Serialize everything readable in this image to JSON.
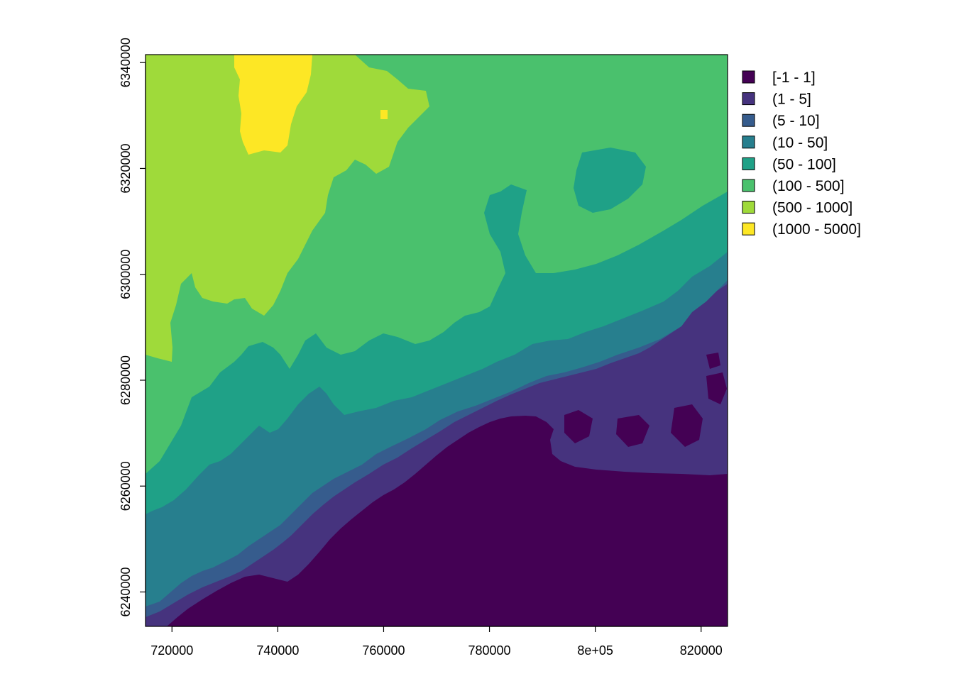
{
  "chart_data": {
    "type": "heatmap",
    "title": "",
    "xlabel": "",
    "ylabel": "",
    "xlim": [
      715000,
      825000
    ],
    "ylim": [
      6233500,
      6341500
    ],
    "x_ticks": [
      {
        "value": 720000,
        "label": "720000"
      },
      {
        "value": 740000,
        "label": "740000"
      },
      {
        "value": 760000,
        "label": "760000"
      },
      {
        "value": 780000,
        "label": "780000"
      },
      {
        "value": 800000,
        "label": "8e+05"
      },
      {
        "value": 820000,
        "label": "820000"
      }
    ],
    "y_ticks": [
      {
        "value": 6240000,
        "label": "6240000"
      },
      {
        "value": 6260000,
        "label": "6260000"
      },
      {
        "value": 6280000,
        "label": "6280000"
      },
      {
        "value": 6300000,
        "label": "6300000"
      },
      {
        "value": 6320000,
        "label": "6320000"
      },
      {
        "value": 6340000,
        "label": "6340000"
      }
    ],
    "legend_position": "right",
    "legend": [
      {
        "label": "[-1 - 1]",
        "color": "#440154"
      },
      {
        "label": "(1 - 5]",
        "color": "#46337E"
      },
      {
        "label": "(5 - 10]",
        "color": "#365C8D"
      },
      {
        "label": "(10 - 50]",
        "color": "#277F8E"
      },
      {
        "label": "(50 - 100]",
        "color": "#1FA187"
      },
      {
        "label": "(100 - 500]",
        "color": "#4AC16D"
      },
      {
        "label": "(500 - 1000]",
        "color": "#9FDA3A"
      },
      {
        "label": "(1000 - 5000]",
        "color": "#FDE725"
      }
    ]
  }
}
